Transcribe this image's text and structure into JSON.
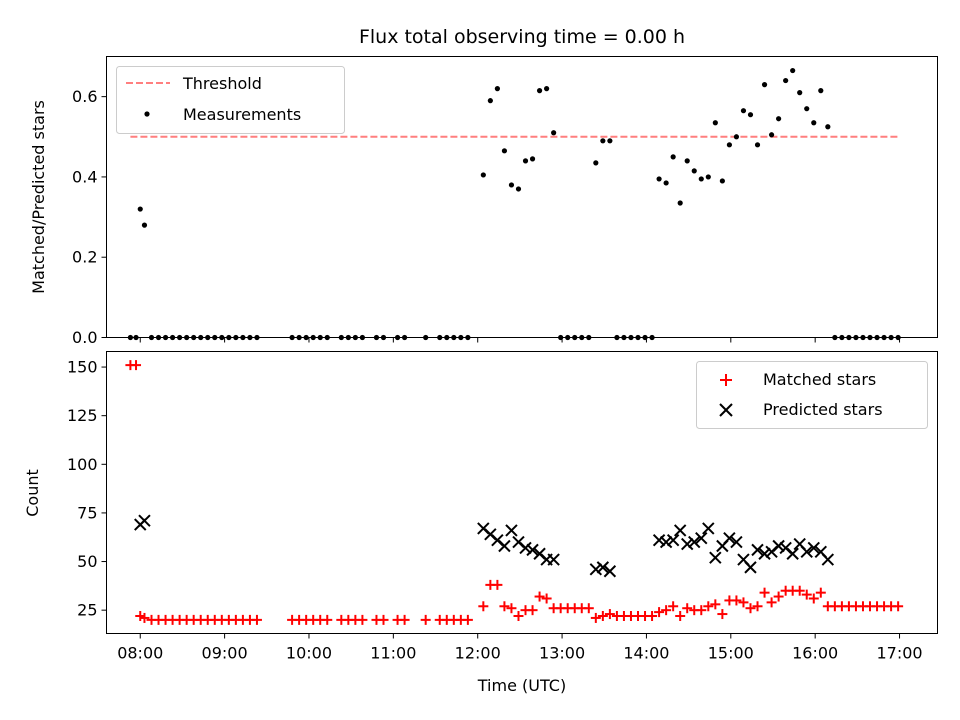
{
  "chart_data": [
    {
      "type": "scatter",
      "title": "Flux total observing time = 0.00 h",
      "ylabel": "Matched/Predicted stars",
      "xlim": [
        "07:36",
        "17:27"
      ],
      "ylim": [
        0,
        0.7
      ],
      "yticks": [
        0.0,
        0.2,
        0.4,
        0.6
      ],
      "ytick_labels": [
        "0.0",
        "0.2",
        "0.4",
        "0.6"
      ],
      "legend_placement": "top-left",
      "threshold": {
        "name": "Threshold",
        "value": 0.5,
        "x_range": [
          "07:53",
          "17:00"
        ],
        "color": "#ff7f7f",
        "style": "dashed"
      },
      "series": [
        {
          "name": "Measurements",
          "color": "#000000",
          "marker": "dot",
          "points": [
            [
              "07:53",
              0
            ],
            [
              "07:57",
              0
            ],
            [
              "08:00",
              0.32
            ],
            [
              "08:03",
              0.28
            ],
            [
              "08:08",
              0
            ],
            [
              "08:13",
              0
            ],
            [
              "08:18",
              0
            ],
            [
              "08:23",
              0
            ],
            [
              "08:28",
              0
            ],
            [
              "08:33",
              0
            ],
            [
              "08:38",
              0
            ],
            [
              "08:43",
              0
            ],
            [
              "08:48",
              0
            ],
            [
              "08:53",
              0
            ],
            [
              "08:58",
              0
            ],
            [
              "09:03",
              0
            ],
            [
              "09:08",
              0
            ],
            [
              "09:13",
              0
            ],
            [
              "09:18",
              0
            ],
            [
              "09:23",
              0
            ],
            [
              "09:48",
              0
            ],
            [
              "09:53",
              0
            ],
            [
              "09:58",
              0
            ],
            [
              "10:03",
              0
            ],
            [
              "10:08",
              0
            ],
            [
              "10:13",
              0
            ],
            [
              "10:23",
              0
            ],
            [
              "10:28",
              0
            ],
            [
              "10:33",
              0
            ],
            [
              "10:38",
              0
            ],
            [
              "10:48",
              0
            ],
            [
              "10:53",
              0
            ],
            [
              "11:03",
              0
            ],
            [
              "11:08",
              0
            ],
            [
              "11:23",
              0
            ],
            [
              "11:33",
              0
            ],
            [
              "11:38",
              0
            ],
            [
              "11:43",
              0
            ],
            [
              "11:48",
              0
            ],
            [
              "11:53",
              0
            ],
            [
              "12:04",
              0.405
            ],
            [
              "12:09",
              0.59
            ],
            [
              "12:14",
              0.62
            ],
            [
              "12:19",
              0.465
            ],
            [
              "12:24",
              0.38
            ],
            [
              "12:29",
              0.37
            ],
            [
              "12:34",
              0.44
            ],
            [
              "12:39",
              0.445
            ],
            [
              "12:44",
              0.615
            ],
            [
              "12:49",
              0.62
            ],
            [
              "12:54",
              0.51
            ],
            [
              "12:59",
              0
            ],
            [
              "13:04",
              0
            ],
            [
              "13:09",
              0
            ],
            [
              "13:14",
              0
            ],
            [
              "13:19",
              0
            ],
            [
              "13:24",
              0.435
            ],
            [
              "13:29",
              0.49
            ],
            [
              "13:34",
              0.49
            ],
            [
              "13:39",
              0
            ],
            [
              "13:44",
              0
            ],
            [
              "13:49",
              0
            ],
            [
              "13:54",
              0
            ],
            [
              "13:59",
              0
            ],
            [
              "14:04",
              0
            ],
            [
              "14:09",
              0.395
            ],
            [
              "14:14",
              0.385
            ],
            [
              "14:19",
              0.45
            ],
            [
              "14:24",
              0.335
            ],
            [
              "14:29",
              0.44
            ],
            [
              "14:34",
              0.415
            ],
            [
              "14:39",
              0.395
            ],
            [
              "14:44",
              0.4
            ],
            [
              "14:49",
              0.535
            ],
            [
              "14:54",
              0.39
            ],
            [
              "14:59",
              0.48
            ],
            [
              "15:04",
              0.5
            ],
            [
              "15:09",
              0.565
            ],
            [
              "15:14",
              0.555
            ],
            [
              "15:19",
              0.48
            ],
            [
              "15:24",
              0.63
            ],
            [
              "15:29",
              0.505
            ],
            [
              "15:34",
              0.545
            ],
            [
              "15:39",
              0.64
            ],
            [
              "15:44",
              0.665
            ],
            [
              "15:49",
              0.61
            ],
            [
              "15:54",
              0.57
            ],
            [
              "15:59",
              0.535
            ],
            [
              "16:04",
              0.615
            ],
            [
              "16:09",
              0.525
            ],
            [
              "16:14",
              0
            ],
            [
              "16:19",
              0
            ],
            [
              "16:24",
              0
            ],
            [
              "16:29",
              0
            ],
            [
              "16:34",
              0
            ],
            [
              "16:39",
              0
            ],
            [
              "16:44",
              0
            ],
            [
              "16:49",
              0
            ],
            [
              "16:54",
              0
            ],
            [
              "16:59",
              0
            ]
          ]
        }
      ]
    },
    {
      "type": "scatter",
      "xlabel": "Time (UTC)",
      "ylabel": "Count",
      "xlim": [
        "07:36",
        "17:27"
      ],
      "ylim": [
        13,
        158
      ],
      "xticks": [
        "08:00",
        "09:00",
        "10:00",
        "11:00",
        "12:00",
        "13:00",
        "14:00",
        "15:00",
        "16:00",
        "17:00"
      ],
      "yticks": [
        25,
        50,
        75,
        100,
        125,
        150
      ],
      "ytick_labels": [
        "25",
        "50",
        "75",
        "100",
        "125",
        "150"
      ],
      "legend_placement": "top-right",
      "series": [
        {
          "name": "Matched stars",
          "color": "#ff0000",
          "marker": "plus",
          "points": [
            [
              "07:53",
              151
            ],
            [
              "07:57",
              151
            ],
            [
              "08:00",
              22
            ],
            [
              "08:03",
              21
            ],
            [
              "08:08",
              20
            ],
            [
              "08:13",
              20
            ],
            [
              "08:18",
              20
            ],
            [
              "08:23",
              20
            ],
            [
              "08:28",
              20
            ],
            [
              "08:33",
              20
            ],
            [
              "08:38",
              20
            ],
            [
              "08:43",
              20
            ],
            [
              "08:48",
              20
            ],
            [
              "08:53",
              20
            ],
            [
              "08:58",
              20
            ],
            [
              "09:03",
              20
            ],
            [
              "09:08",
              20
            ],
            [
              "09:13",
              20
            ],
            [
              "09:18",
              20
            ],
            [
              "09:23",
              20
            ],
            [
              "09:48",
              20
            ],
            [
              "09:53",
              20
            ],
            [
              "09:58",
              20
            ],
            [
              "10:03",
              20
            ],
            [
              "10:08",
              20
            ],
            [
              "10:13",
              20
            ],
            [
              "10:23",
              20
            ],
            [
              "10:28",
              20
            ],
            [
              "10:33",
              20
            ],
            [
              "10:38",
              20
            ],
            [
              "10:48",
              20
            ],
            [
              "10:53",
              20
            ],
            [
              "11:03",
              20
            ],
            [
              "11:08",
              20
            ],
            [
              "11:23",
              20
            ],
            [
              "11:33",
              20
            ],
            [
              "11:38",
              20
            ],
            [
              "11:43",
              20
            ],
            [
              "11:48",
              20
            ],
            [
              "11:53",
              20
            ],
            [
              "12:04",
              27
            ],
            [
              "12:09",
              38
            ],
            [
              "12:14",
              38
            ],
            [
              "12:19",
              27
            ],
            [
              "12:24",
              26
            ],
            [
              "12:29",
              22
            ],
            [
              "12:34",
              25
            ],
            [
              "12:39",
              25
            ],
            [
              "12:44",
              32
            ],
            [
              "12:49",
              31
            ],
            [
              "12:54",
              26
            ],
            [
              "12:59",
              26
            ],
            [
              "13:04",
              26
            ],
            [
              "13:09",
              26
            ],
            [
              "13:14",
              26
            ],
            [
              "13:19",
              26
            ],
            [
              "13:24",
              21
            ],
            [
              "13:29",
              22
            ],
            [
              "13:34",
              23
            ],
            [
              "13:39",
              22
            ],
            [
              "13:44",
              22
            ],
            [
              "13:49",
              22
            ],
            [
              "13:54",
              22
            ],
            [
              "13:59",
              22
            ],
            [
              "14:04",
              22
            ],
            [
              "14:09",
              24
            ],
            [
              "14:14",
              25
            ],
            [
              "14:19",
              27
            ],
            [
              "14:24",
              22
            ],
            [
              "14:29",
              26
            ],
            [
              "14:34",
              25
            ],
            [
              "14:39",
              25
            ],
            [
              "14:44",
              27
            ],
            [
              "14:49",
              28
            ],
            [
              "14:54",
              23
            ],
            [
              "14:59",
              30
            ],
            [
              "15:04",
              30
            ],
            [
              "15:09",
              29
            ],
            [
              "15:14",
              26
            ],
            [
              "15:19",
              27
            ],
            [
              "15:24",
              34
            ],
            [
              "15:29",
              29
            ],
            [
              "15:34",
              32
            ],
            [
              "15:39",
              35
            ],
            [
              "15:44",
              35
            ],
            [
              "15:49",
              35
            ],
            [
              "15:54",
              33
            ],
            [
              "15:59",
              31
            ],
            [
              "16:04",
              34
            ],
            [
              "16:09",
              27
            ],
            [
              "16:14",
              27
            ],
            [
              "16:19",
              27
            ],
            [
              "16:24",
              27
            ],
            [
              "16:29",
              27
            ],
            [
              "16:34",
              27
            ],
            [
              "16:39",
              27
            ],
            [
              "16:44",
              27
            ],
            [
              "16:49",
              27
            ],
            [
              "16:54",
              27
            ],
            [
              "16:59",
              27
            ]
          ]
        },
        {
          "name": "Predicted stars",
          "color": "#000000",
          "marker": "x",
          "points": [
            [
              "08:00",
              69
            ],
            [
              "08:03",
              71
            ],
            [
              "12:04",
              67
            ],
            [
              "12:09",
              64
            ],
            [
              "12:14",
              61
            ],
            [
              "12:19",
              58
            ],
            [
              "12:24",
              66
            ],
            [
              "12:29",
              60
            ],
            [
              "12:34",
              57
            ],
            [
              "12:39",
              56
            ],
            [
              "12:44",
              54
            ],
            [
              "12:49",
              51
            ],
            [
              "12:54",
              51
            ],
            [
              "13:24",
              46
            ],
            [
              "13:29",
              47
            ],
            [
              "13:34",
              45
            ],
            [
              "14:09",
              61
            ],
            [
              "14:14",
              60
            ],
            [
              "14:19",
              61
            ],
            [
              "14:24",
              66
            ],
            [
              "14:29",
              59
            ],
            [
              "14:34",
              60
            ],
            [
              "14:39",
              62
            ],
            [
              "14:44",
              67
            ],
            [
              "14:49",
              52
            ],
            [
              "14:54",
              58
            ],
            [
              "14:59",
              62
            ],
            [
              "15:04",
              60
            ],
            [
              "15:09",
              51
            ],
            [
              "15:14",
              47
            ],
            [
              "15:19",
              56
            ],
            [
              "15:24",
              54
            ],
            [
              "15:29",
              55
            ],
            [
              "15:34",
              58
            ],
            [
              "15:39",
              57
            ],
            [
              "15:44",
              54
            ],
            [
              "15:49",
              59
            ],
            [
              "15:54",
              55
            ],
            [
              "15:59",
              57
            ],
            [
              "16:04",
              55
            ],
            [
              "16:09",
              51
            ]
          ]
        }
      ]
    }
  ]
}
